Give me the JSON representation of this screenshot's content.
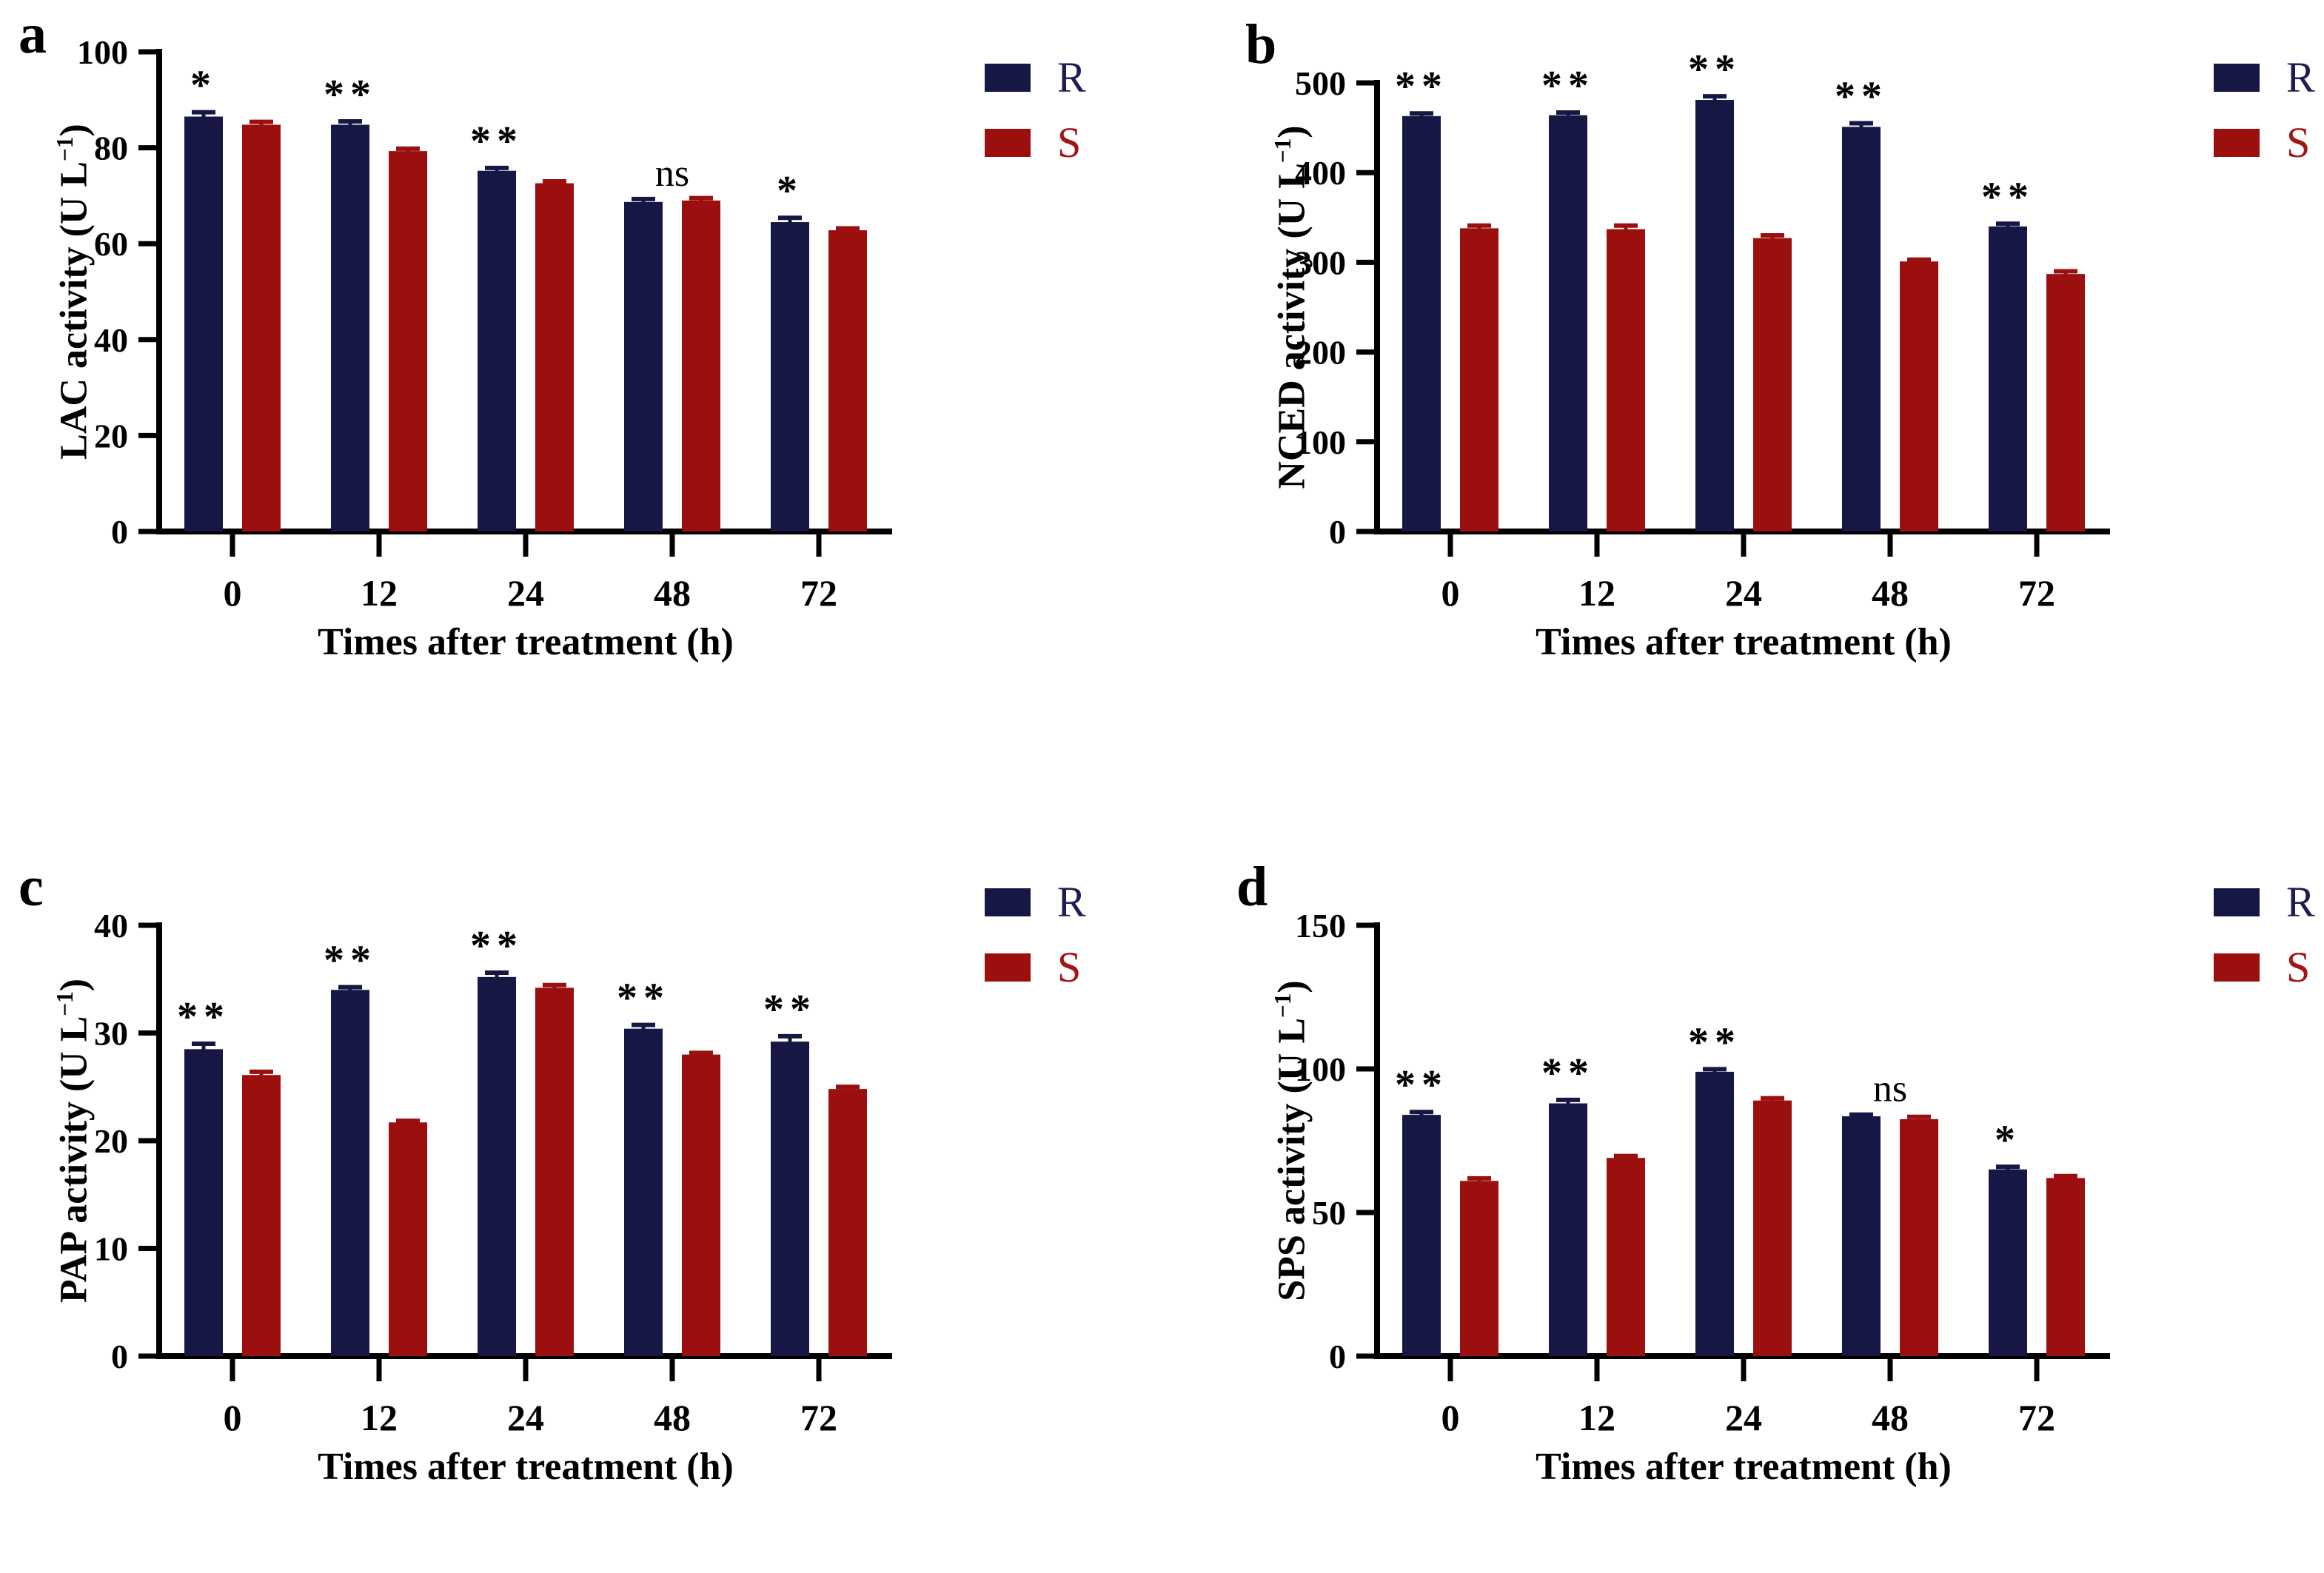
{
  "figure": {
    "background": "#ffffff",
    "colors": {
      "r": "#171745",
      "s": "#9b0f0f",
      "axis": "#000000",
      "legend_r_text": "#1d1d52",
      "legend_s_text": "#a31414"
    }
  },
  "chart_data": [
    {
      "panel": "a",
      "type": "bar",
      "title": "",
      "ylabel": "LAC activity (U L⁻¹)",
      "ylabel_parts": {
        "base": "LAC activity (U L",
        "sup": "−1",
        "close": ")"
      },
      "xlabel": "Times after treatment (h)",
      "categories": [
        "0",
        "12",
        "24",
        "48",
        "72"
      ],
      "series": [
        {
          "name": "R",
          "color": "#171745",
          "values": [
            86.5,
            84.8,
            75.2,
            68.7,
            64.5
          ],
          "errors": [
            0.9,
            0.7,
            0.6,
            0.6,
            0.9
          ]
        },
        {
          "name": "S",
          "color": "#9b0f0f",
          "values": [
            84.8,
            79.3,
            72.6,
            69.0,
            62.8
          ],
          "errors": [
            0.6,
            0.5,
            0.4,
            0.5,
            0.4
          ]
        }
      ],
      "significance": [
        "*",
        "**",
        "**",
        "ns",
        "*"
      ],
      "ylim": [
        0,
        100
      ],
      "yticks": [
        0,
        20,
        40,
        60,
        80,
        100
      ],
      "legend": [
        "R",
        "S"
      ],
      "legend_position": "top-right",
      "grid": false
    },
    {
      "panel": "b",
      "type": "bar",
      "title": "",
      "ylabel": "NCED activity (U L⁻¹)",
      "ylabel_parts": {
        "base": "NCED activity (U L",
        "sup": "−1",
        "close": ")"
      },
      "xlabel": "Times after treatment (h)",
      "categories": [
        "0",
        "12",
        "24",
        "48",
        "72"
      ],
      "series": [
        {
          "name": "R",
          "color": "#171745",
          "values": [
            463,
            464,
            481,
            451,
            340
          ],
          "errors": [
            3,
            3,
            4,
            4,
            3
          ]
        },
        {
          "name": "S",
          "color": "#9b0f0f",
          "values": [
            338,
            337,
            327,
            301,
            287
          ],
          "errors": [
            3,
            4,
            3,
            2,
            3
          ]
        }
      ],
      "significance": [
        "**",
        "**",
        "**",
        "**",
        "**"
      ],
      "ylim": [
        0,
        500
      ],
      "yticks": [
        0,
        100,
        200,
        300,
        400,
        500
      ],
      "legend": [
        "R",
        "S"
      ],
      "legend_position": "top-right",
      "grid": false
    },
    {
      "panel": "c",
      "type": "bar",
      "title": "",
      "ylabel": "PAP activity (U L⁻¹)",
      "ylabel_parts": {
        "base": "PAP activity (U L",
        "sup": "−1",
        "close": ")"
      },
      "xlabel": "Times after treatment (h)",
      "categories": [
        "0",
        "12",
        "24",
        "48",
        "72"
      ],
      "series": [
        {
          "name": "R",
          "color": "#171745",
          "values": [
            28.5,
            34.0,
            35.2,
            30.4,
            29.2
          ],
          "errors": [
            0.5,
            0.25,
            0.4,
            0.35,
            0.5
          ]
        },
        {
          "name": "S",
          "color": "#9b0f0f",
          "values": [
            26.1,
            21.7,
            34.2,
            28.0,
            24.8
          ],
          "errors": [
            0.3,
            0.15,
            0.25,
            0.15,
            0.2
          ]
        }
      ],
      "significance": [
        "**",
        "**",
        "**",
        "**",
        "**"
      ],
      "ylim": [
        0,
        40
      ],
      "yticks": [
        0,
        10,
        20,
        30,
        40
      ],
      "legend": [
        "R",
        "S"
      ],
      "legend_position": "top-right",
      "grid": false
    },
    {
      "panel": "d",
      "type": "bar",
      "title": "",
      "ylabel": "SPS activity (U L⁻¹)",
      "ylabel_parts": {
        "base": "SPS activity (U L",
        "sup": "−1",
        "close": ")"
      },
      "xlabel": "Times after treatment (h)",
      "categories": [
        "0",
        "12",
        "24",
        "48",
        "72"
      ],
      "series": [
        {
          "name": "R",
          "color": "#171745",
          "values": [
            84,
            88,
            99,
            83.5,
            65
          ],
          "errors": [
            1.0,
            1.2,
            0.9,
            0.6,
            0.9
          ]
        },
        {
          "name": "S",
          "color": "#9b0f0f",
          "values": [
            61,
            69,
            89,
            82.5,
            62
          ],
          "errors": [
            0.9,
            0.7,
            0.8,
            0.8,
            0.7
          ]
        }
      ],
      "significance": [
        "**",
        "**",
        "**",
        "ns",
        "*"
      ],
      "ylim": [
        0,
        150
      ],
      "yticks": [
        0,
        50,
        100,
        150
      ],
      "legend": [
        "R",
        "S"
      ],
      "legend_position": "top-right",
      "grid": false
    }
  ]
}
